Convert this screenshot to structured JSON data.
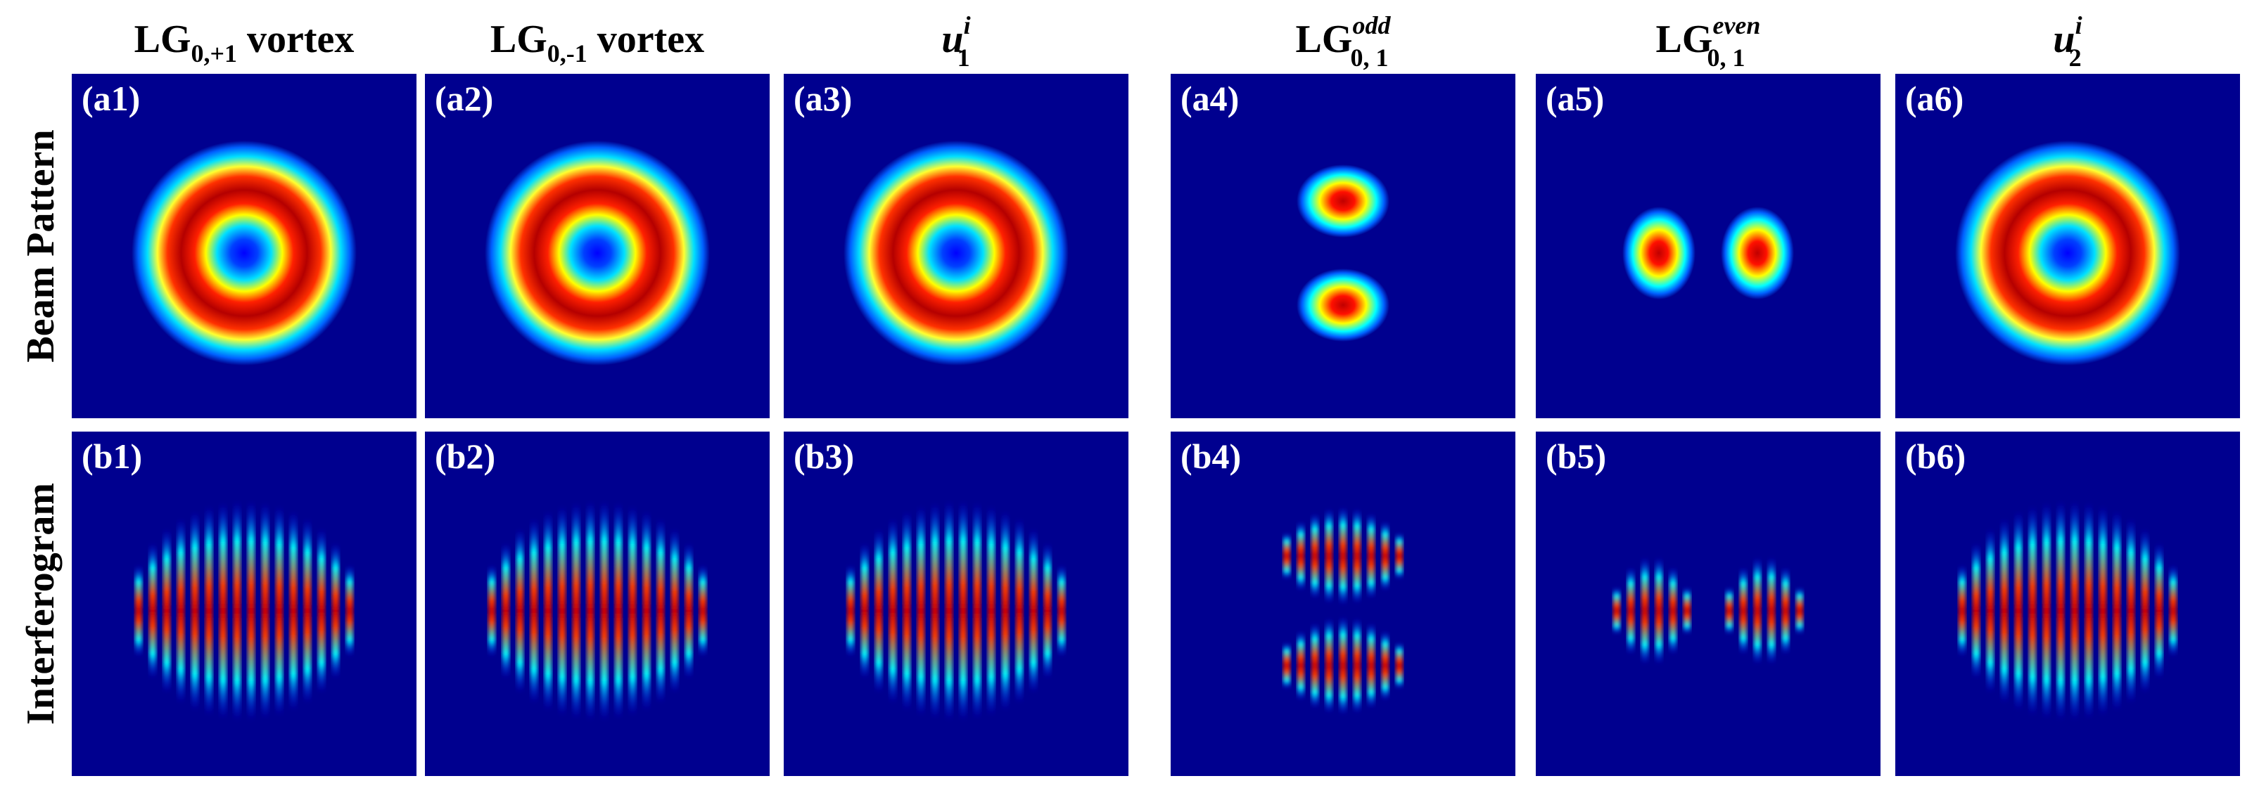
{
  "figure": {
    "row_labels": [
      "Beam Pattern",
      "Interferogram"
    ],
    "columns": [
      {
        "title": "LG",
        "sub": "0,+1",
        "sup": "",
        "suffix": " vortex"
      },
      {
        "title": "LG",
        "sub": "0,-1",
        "sup": "",
        "suffix": " vortex"
      },
      {
        "title": "u",
        "sub": "1",
        "sup": "i",
        "suffix": ""
      },
      {
        "title": "LG",
        "sub": "0, 1",
        "sup": "odd",
        "suffix": ""
      },
      {
        "title": "LG",
        "sub": "0, 1",
        "sup": "even",
        "suffix": ""
      },
      {
        "title": "u",
        "sub": "2",
        "sup": "i",
        "suffix": ""
      }
    ],
    "panel_labels": [
      [
        "(a1)",
        "(a2)",
        "(a3)",
        "(a4)",
        "(a5)",
        "(a6)"
      ],
      [
        "(b1)",
        "(b2)",
        "(b3)",
        "(b4)",
        "(b5)",
        "(b6)"
      ]
    ],
    "colormap": [
      "#00008f",
      "#0000ff",
      "#00ffff",
      "#ffff00",
      "#ff0000",
      "#800000"
    ]
  }
}
